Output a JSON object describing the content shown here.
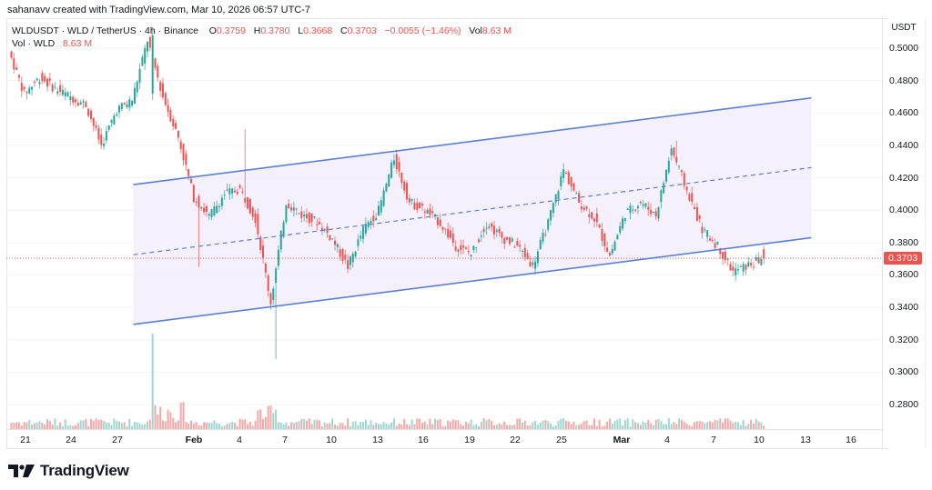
{
  "header": {
    "credit": "sahanavv created with TradingView.com, Mar 10, 2026 06:57 UTC-7"
  },
  "legend": {
    "symbol": "WLDUSDT · WLD / TetherUS · 4h · Binance",
    "open_label": "O",
    "open": "0.3759",
    "high_label": "H",
    "high": "0.3780",
    "low_label": "L",
    "low": "0.3668",
    "close_label": "C",
    "close": "0.3703",
    "change": "−0.0055 (−1.46%)",
    "vol_label": "Vol",
    "vol": "8.63 M",
    "vol_row_label": "Vol · WLD",
    "vol_row_value": "8.63 M"
  },
  "price_axis": {
    "unit": "USDT",
    "ticks": [
      "0.5000",
      "0.4800",
      "0.4600",
      "0.4400",
      "0.4200",
      "0.4000",
      "0.3800",
      "0.3600",
      "0.3400",
      "0.3200",
      "0.3000",
      "0.2800"
    ],
    "last_price": "0.3703"
  },
  "time_axis": {
    "ticks": [
      {
        "label": "21",
        "bold": false
      },
      {
        "label": "24",
        "bold": false
      },
      {
        "label": "27",
        "bold": false
      },
      {
        "label": "Feb",
        "bold": true
      },
      {
        "label": "4",
        "bold": false
      },
      {
        "label": "7",
        "bold": false
      },
      {
        "label": "10",
        "bold": false
      },
      {
        "label": "13",
        "bold": false
      },
      {
        "label": "16",
        "bold": false
      },
      {
        "label": "19",
        "bold": false
      },
      {
        "label": "22",
        "bold": false
      },
      {
        "label": "25",
        "bold": false
      },
      {
        "label": "Mar",
        "bold": true
      },
      {
        "label": "4",
        "bold": false
      },
      {
        "label": "7",
        "bold": false
      },
      {
        "label": "10",
        "bold": false
      },
      {
        "label": "13",
        "bold": false
      },
      {
        "label": "16",
        "bold": false
      }
    ]
  },
  "brand": {
    "name": "TradingView"
  },
  "colors": {
    "up": "#26a69a",
    "down": "#ef5350",
    "vol_up": "#9fd6d0",
    "vol_down": "#f4a9a8",
    "channel": "#5b7fd6",
    "channel_fill": "#f3eefb",
    "grid": "#f0f3fa",
    "last_price_line": "#ef5350"
  },
  "chart_data": {
    "type": "candlestick",
    "title": "WLDUSDT · WLD / TetherUS · 4h · Binance",
    "xlabel": "",
    "ylabel": "USDT",
    "ylim": [
      0.27,
      0.513
    ],
    "x_range": [
      "Jan 20, 2026",
      "Mar 18, 2026"
    ],
    "grid": true,
    "last": {
      "open": 0.3759,
      "high": 0.378,
      "low": 0.3668,
      "close": 0.3703,
      "volume": "8.63M"
    },
    "path_keypoints": [
      {
        "date": "Jan 20",
        "price": 0.498
      },
      {
        "date": "Jan 21",
        "price": 0.472
      },
      {
        "date": "Jan 22",
        "price": 0.482
      },
      {
        "date": "Jan 23",
        "price": 0.475
      },
      {
        "date": "Jan 24",
        "price": 0.47
      },
      {
        "date": "Jan 25",
        "price": 0.465
      },
      {
        "date": "Jan 26",
        "price": 0.44
      },
      {
        "date": "Jan 27",
        "price": 0.462
      },
      {
        "date": "Jan 28",
        "price": 0.468
      },
      {
        "date": "Jan 29",
        "price": 0.505
      },
      {
        "date": "Jan 30",
        "price": 0.47
      },
      {
        "date": "Jan 31",
        "price": 0.445
      },
      {
        "date": "Feb 1",
        "price": 0.408
      },
      {
        "date": "Feb 2",
        "price": 0.396
      },
      {
        "date": "Feb 3",
        "price": 0.41
      },
      {
        "date": "Feb 4",
        "price": 0.413
      },
      {
        "date": "Feb 5",
        "price": 0.395
      },
      {
        "date": "Feb 6",
        "price": 0.343
      },
      {
        "date": "Feb 7",
        "price": 0.405
      },
      {
        "date": "Feb 8",
        "price": 0.397
      },
      {
        "date": "Feb 9",
        "price": 0.393
      },
      {
        "date": "Feb 10",
        "price": 0.382
      },
      {
        "date": "Feb 11",
        "price": 0.365
      },
      {
        "date": "Feb 12",
        "price": 0.388
      },
      {
        "date": "Feb 13",
        "price": 0.4
      },
      {
        "date": "Feb 14",
        "price": 0.432
      },
      {
        "date": "Feb 15",
        "price": 0.405
      },
      {
        "date": "Feb 16",
        "price": 0.4
      },
      {
        "date": "Feb 17",
        "price": 0.392
      },
      {
        "date": "Feb 18",
        "price": 0.378
      },
      {
        "date": "Feb 19",
        "price": 0.373
      },
      {
        "date": "Feb 20",
        "price": 0.392
      },
      {
        "date": "Feb 21",
        "price": 0.383
      },
      {
        "date": "Feb 22",
        "price": 0.378
      },
      {
        "date": "Feb 23",
        "price": 0.366
      },
      {
        "date": "Feb 24",
        "price": 0.392
      },
      {
        "date": "Feb 25",
        "price": 0.425
      },
      {
        "date": "Feb 26",
        "price": 0.405
      },
      {
        "date": "Feb 27",
        "price": 0.395
      },
      {
        "date": "Feb 28",
        "price": 0.372
      },
      {
        "date": "Mar 1",
        "price": 0.398
      },
      {
        "date": "Mar 2",
        "price": 0.405
      },
      {
        "date": "Mar 3",
        "price": 0.397
      },
      {
        "date": "Mar 4",
        "price": 0.438
      },
      {
        "date": "Mar 5",
        "price": 0.412
      },
      {
        "date": "Mar 6",
        "price": 0.388
      },
      {
        "date": "Mar 7",
        "price": 0.378
      },
      {
        "date": "Mar 8",
        "price": 0.362
      },
      {
        "date": "Mar 9",
        "price": 0.366
      },
      {
        "date": "Mar 10",
        "price": 0.3703
      }
    ],
    "spikes": [
      {
        "date": "Jan 29",
        "high": 0.513,
        "low": 0.468,
        "volume_relative": 1.0
      },
      {
        "date": "Feb 1",
        "low": 0.365
      },
      {
        "date": "Feb 4",
        "high": 0.45
      },
      {
        "date": "Feb 6",
        "low": 0.308
      },
      {
        "date": "Mar 4",
        "high": 0.443
      }
    ],
    "channel": {
      "upper": {
        "start": {
          "date": "Jan 28",
          "price": 0.4158
        },
        "end": {
          "date": "Mar 13",
          "price": 0.4693
        }
      },
      "middle_dashed": {
        "start": {
          "date": "Jan 28",
          "price": 0.3725
        },
        "end": {
          "date": "Mar 13",
          "price": 0.4263
        }
      },
      "lower": {
        "start": {
          "date": "Jan 28",
          "price": 0.3295
        },
        "end": {
          "date": "Mar 13",
          "price": 0.383
        }
      }
    },
    "volume_series": {
      "baseline_price_axis": 0.27,
      "max_bar_date": "Jan 29",
      "notes": "low baseline volume with cluster of higher bars Jan 29–Jan 31 and Feb 5–6"
    }
  }
}
